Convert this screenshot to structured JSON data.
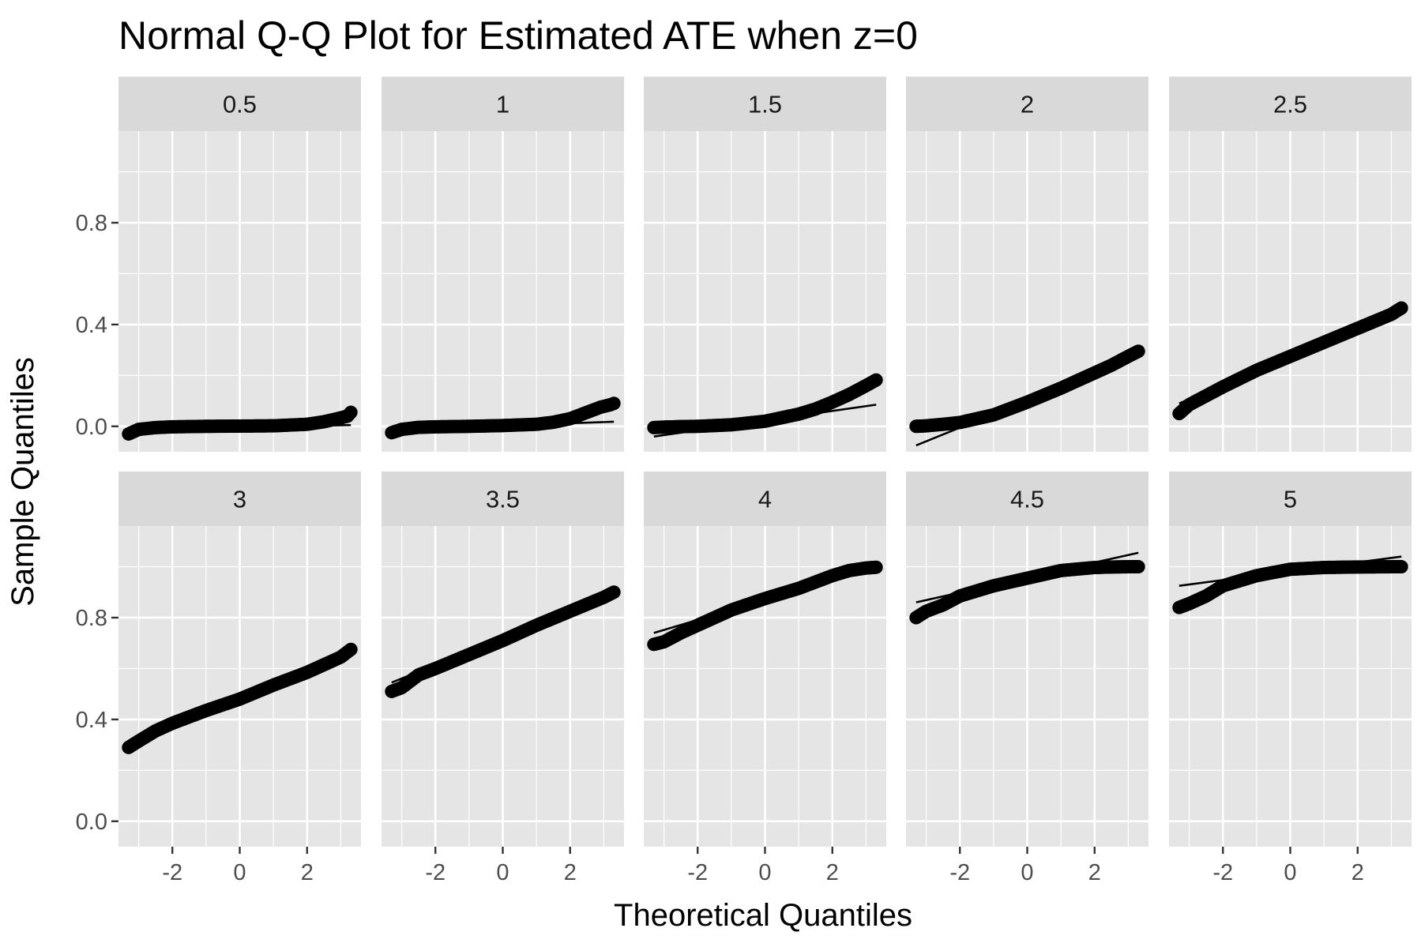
{
  "chart_data": {
    "type": "scatter",
    "subtype": "faceted-normal-qq",
    "title": "Normal Q-Q Plot for Estimated ATE when z=0",
    "xlabel": "Theoretical Quantiles",
    "ylabel": "Sample Quantiles",
    "xlim": [
      -3.6,
      3.6
    ],
    "ylim": [
      -0.1,
      1.16
    ],
    "xticks": [
      -2,
      0,
      2
    ],
    "xtick_labels": [
      "-2",
      "0",
      "2"
    ],
    "yticks": [
      0.0,
      0.4,
      0.8
    ],
    "ytick_labels": [
      "0.0",
      "0.4",
      "0.8"
    ],
    "grid": true,
    "legend": "none",
    "layout": {
      "rows": 2,
      "cols": 5
    },
    "colors": {
      "panel_background": "#e5e5e5",
      "strip_background": "#d9d9d9",
      "grid": "#ffffff",
      "points": "#000000",
      "reference_line": "#000000"
    },
    "facets": [
      {
        "label": "0.5",
        "x": [
          -3.3,
          -3,
          -2.5,
          -2,
          -1,
          0,
          1,
          2,
          2.5,
          2.9,
          3.2,
          3.3
        ],
        "y": [
          -0.03,
          -0.012,
          -0.005,
          -0.002,
          0,
          0.001,
          0.002,
          0.008,
          0.018,
          0.03,
          0.04,
          0.055
        ],
        "ref_line": {
          "x": [
            -3.3,
            3.3
          ],
          "y": [
            -0.012,
            0.005
          ]
        }
      },
      {
        "label": "1",
        "x": [
          -3.3,
          -3,
          -2.5,
          -2,
          -1,
          0,
          1,
          1.5,
          2,
          2.5,
          2.9,
          3.2,
          3.3
        ],
        "y": [
          -0.025,
          -0.012,
          -0.004,
          -0.002,
          0,
          0.003,
          0.008,
          0.016,
          0.03,
          0.055,
          0.075,
          0.085,
          0.09
        ],
        "ref_line": {
          "x": [
            -3.3,
            3.3
          ],
          "y": [
            -0.012,
            0.018
          ]
        }
      },
      {
        "label": "1.5",
        "x": [
          -3.3,
          -3,
          -2.5,
          -2,
          -1,
          0,
          1,
          1.5,
          2,
          2.5,
          3,
          3.3
        ],
        "y": [
          -0.005,
          -0.003,
          -0.001,
          0,
          0.006,
          0.02,
          0.048,
          0.068,
          0.095,
          0.125,
          0.16,
          0.182
        ],
        "ref_line": {
          "x": [
            -3.3,
            3.3
          ],
          "y": [
            -0.04,
            0.085
          ]
        }
      },
      {
        "label": "2",
        "x": [
          -3.3,
          -3,
          -2.5,
          -2,
          -1,
          0,
          1,
          2,
          2.5,
          3,
          3.3
        ],
        "y": [
          0,
          0.002,
          0.008,
          0.015,
          0.045,
          0.095,
          0.15,
          0.21,
          0.24,
          0.275,
          0.295
        ],
        "ref_line": {
          "x": [
            -3.3,
            3.3
          ],
          "y": [
            -0.075,
            0.28
          ]
        }
      },
      {
        "label": "2.5",
        "x": [
          -3.3,
          -3,
          -2.5,
          -2,
          -1,
          0,
          1,
          2,
          3,
          3.3
        ],
        "y": [
          0.05,
          0.085,
          0.12,
          0.155,
          0.22,
          0.275,
          0.33,
          0.385,
          0.44,
          0.465
        ],
        "ref_line": {
          "x": [
            -3.3,
            3.3
          ],
          "y": [
            0.09,
            0.46
          ]
        }
      },
      {
        "label": "3",
        "x": [
          -3.3,
          -3,
          -2.5,
          -2,
          -1,
          0,
          1,
          2,
          3,
          3.3
        ],
        "y": [
          0.29,
          0.315,
          0.355,
          0.385,
          0.435,
          0.48,
          0.535,
          0.585,
          0.645,
          0.675
        ],
        "ref_line": {
          "x": [
            -3.3,
            3.3
          ],
          "y": [
            0.295,
            0.67
          ]
        }
      },
      {
        "label": "3.5",
        "x": [
          -3.3,
          -3,
          -2.5,
          -2,
          -1,
          0,
          1,
          2,
          3,
          3.3
        ],
        "y": [
          0.51,
          0.525,
          0.575,
          0.6,
          0.655,
          0.71,
          0.77,
          0.825,
          0.88,
          0.9
        ],
        "ref_line": {
          "x": [
            -3.3,
            3.3
          ],
          "y": [
            0.545,
            0.895
          ]
        }
      },
      {
        "label": "4",
        "x": [
          -3.3,
          -3,
          -2.5,
          -2,
          -1,
          0,
          1,
          2,
          2.5,
          3,
          3.3
        ],
        "y": [
          0.695,
          0.705,
          0.74,
          0.77,
          0.83,
          0.875,
          0.915,
          0.965,
          0.985,
          0.995,
          0.998
        ],
        "ref_line": {
          "x": [
            -3.3,
            3.3
          ],
          "y": [
            0.74,
            1.0
          ]
        }
      },
      {
        "label": "4.5",
        "x": [
          -3.3,
          -3,
          -2.5,
          -2,
          -1,
          0,
          1,
          2,
          2.5,
          3,
          3.3
        ],
        "y": [
          0.8,
          0.825,
          0.85,
          0.885,
          0.925,
          0.955,
          0.985,
          0.997,
          0.999,
          1.0,
          1.0
        ],
        "ref_line": {
          "x": [
            -3.3,
            3.3
          ],
          "y": [
            0.86,
            1.055
          ]
        }
      },
      {
        "label": "5",
        "x": [
          -3.3,
          -3,
          -2.5,
          -2,
          -1,
          0,
          1,
          2,
          3,
          3.3
        ],
        "y": [
          0.84,
          0.855,
          0.885,
          0.925,
          0.965,
          0.99,
          0.997,
          0.999,
          1.0,
          1.0
        ],
        "ref_line": {
          "x": [
            -3.3,
            3.3
          ],
          "y": [
            0.925,
            1.04
          ]
        }
      }
    ]
  }
}
